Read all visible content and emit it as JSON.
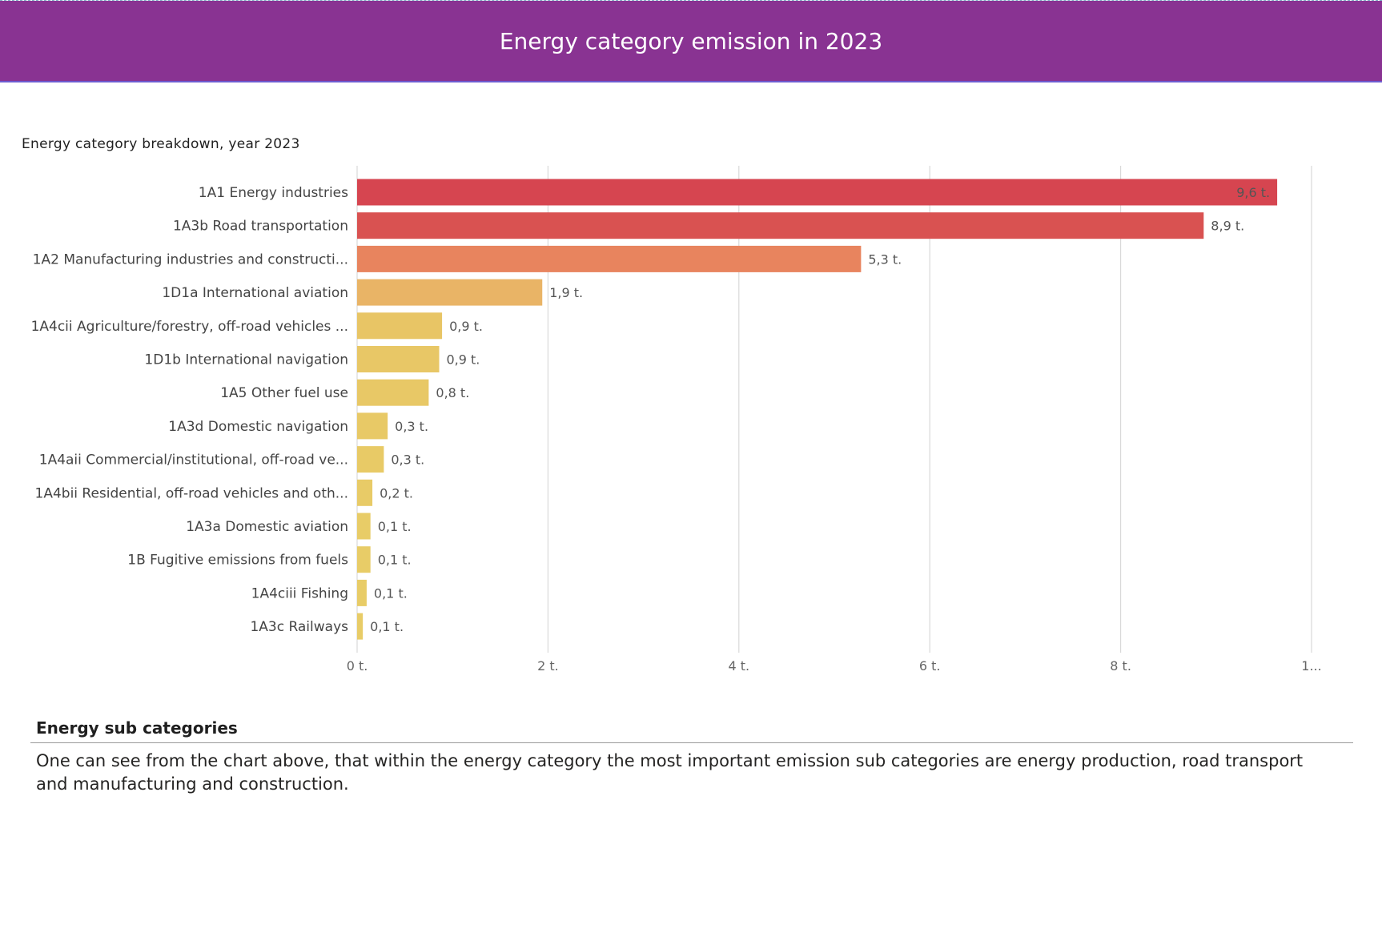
{
  "header": {
    "title": "Energy category emission in 2023"
  },
  "chart_data": {
    "type": "bar",
    "orientation": "horizontal",
    "title": "Energy category breakdown, year 2023",
    "categories": [
      "1A1 Energy industries",
      "1A3b Road transportation",
      "1A2 Manufacturing industries and constructi...",
      "1D1a International aviation",
      "1A4cii Agriculture/forestry, off-road vehicles ...",
      "1D1b International navigation",
      "1A5 Other fuel use",
      "1A3d Domestic navigation",
      "1A4aii Commercial/institutional, off-road ve...",
      "1A4bii Residential, off-road vehicles and oth...",
      "1A3a Domestic aviation",
      "1B Fugitive emissions from fuels",
      "1A4ciii Fishing",
      "1A3c Railways"
    ],
    "values": [
      9.64,
      8.87,
      5.28,
      1.94,
      0.89,
      0.86,
      0.75,
      0.32,
      0.28,
      0.16,
      0.14,
      0.14,
      0.1,
      0.06
    ],
    "value_labels": [
      "9,6 t.",
      "8,9 t.",
      "5,3 t.",
      "1,9 t.",
      "0,9 t.",
      "0,9 t.",
      "0,8 t.",
      "0,3 t.",
      "0,3 t.",
      "0,2 t.",
      "0,1 t.",
      "0,1 t.",
      "0,1 t.",
      "0,1 t."
    ],
    "colors": [
      "#d64550",
      "#d95251",
      "#e8845e",
      "#e9b466",
      "#e8c565",
      "#e8c766",
      "#e8c866",
      "#e8c966",
      "#e8ca66",
      "#e8cb67",
      "#e8cc67",
      "#e8cc67",
      "#e8cc67",
      "#e8cc67"
    ],
    "x_ticks": [
      0,
      2,
      4,
      6,
      8,
      10
    ],
    "x_tick_labels": [
      "0 t.",
      "2 t.",
      "4 t.",
      "6 t.",
      "8 t.",
      "1..."
    ],
    "xlim": [
      0,
      10
    ],
    "grid": true
  },
  "section": {
    "heading": "Energy sub categories",
    "body": "One can see from the chart above, that within the energy category the most important emission sub categories are energy production, road transport and manufacturing and construction."
  }
}
